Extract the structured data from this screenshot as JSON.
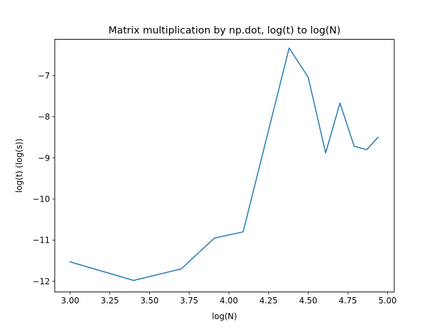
{
  "chart_data": {
    "type": "line",
    "title": "Matrix multiplication by np.dot, log(t) to log(N)",
    "xlabel": "log(N)",
    "ylabel": "log(t) (log(s))",
    "xlim": [
      2.903,
      5.042
    ],
    "ylim": [
      -12.26,
      -6.12
    ],
    "xticks": [
      3.0,
      3.25,
      3.5,
      3.75,
      4.0,
      4.25,
      4.5,
      4.75,
      5.0
    ],
    "xtick_labels": [
      "3.00",
      "3.25",
      "3.50",
      "3.75",
      "4.00",
      "4.25",
      "4.50",
      "4.75",
      "5.00"
    ],
    "yticks": [
      -12,
      -11,
      -10,
      -9,
      -8,
      -7
    ],
    "ytick_labels": [
      "−12",
      "−11",
      "−10",
      "−9",
      "−8",
      "−7"
    ],
    "grid": false,
    "series": [
      {
        "name": "np.dot",
        "color": "#1f77b4",
        "x": [
          3.0,
          3.4,
          3.7,
          3.91,
          4.09,
          4.38,
          4.5,
          4.61,
          4.7,
          4.79,
          4.87,
          4.94
        ],
        "y": [
          -11.53,
          -11.98,
          -11.7,
          -10.95,
          -10.8,
          -6.33,
          -7.04,
          -8.88,
          -7.67,
          -8.72,
          -8.8,
          -8.5
        ]
      }
    ]
  }
}
